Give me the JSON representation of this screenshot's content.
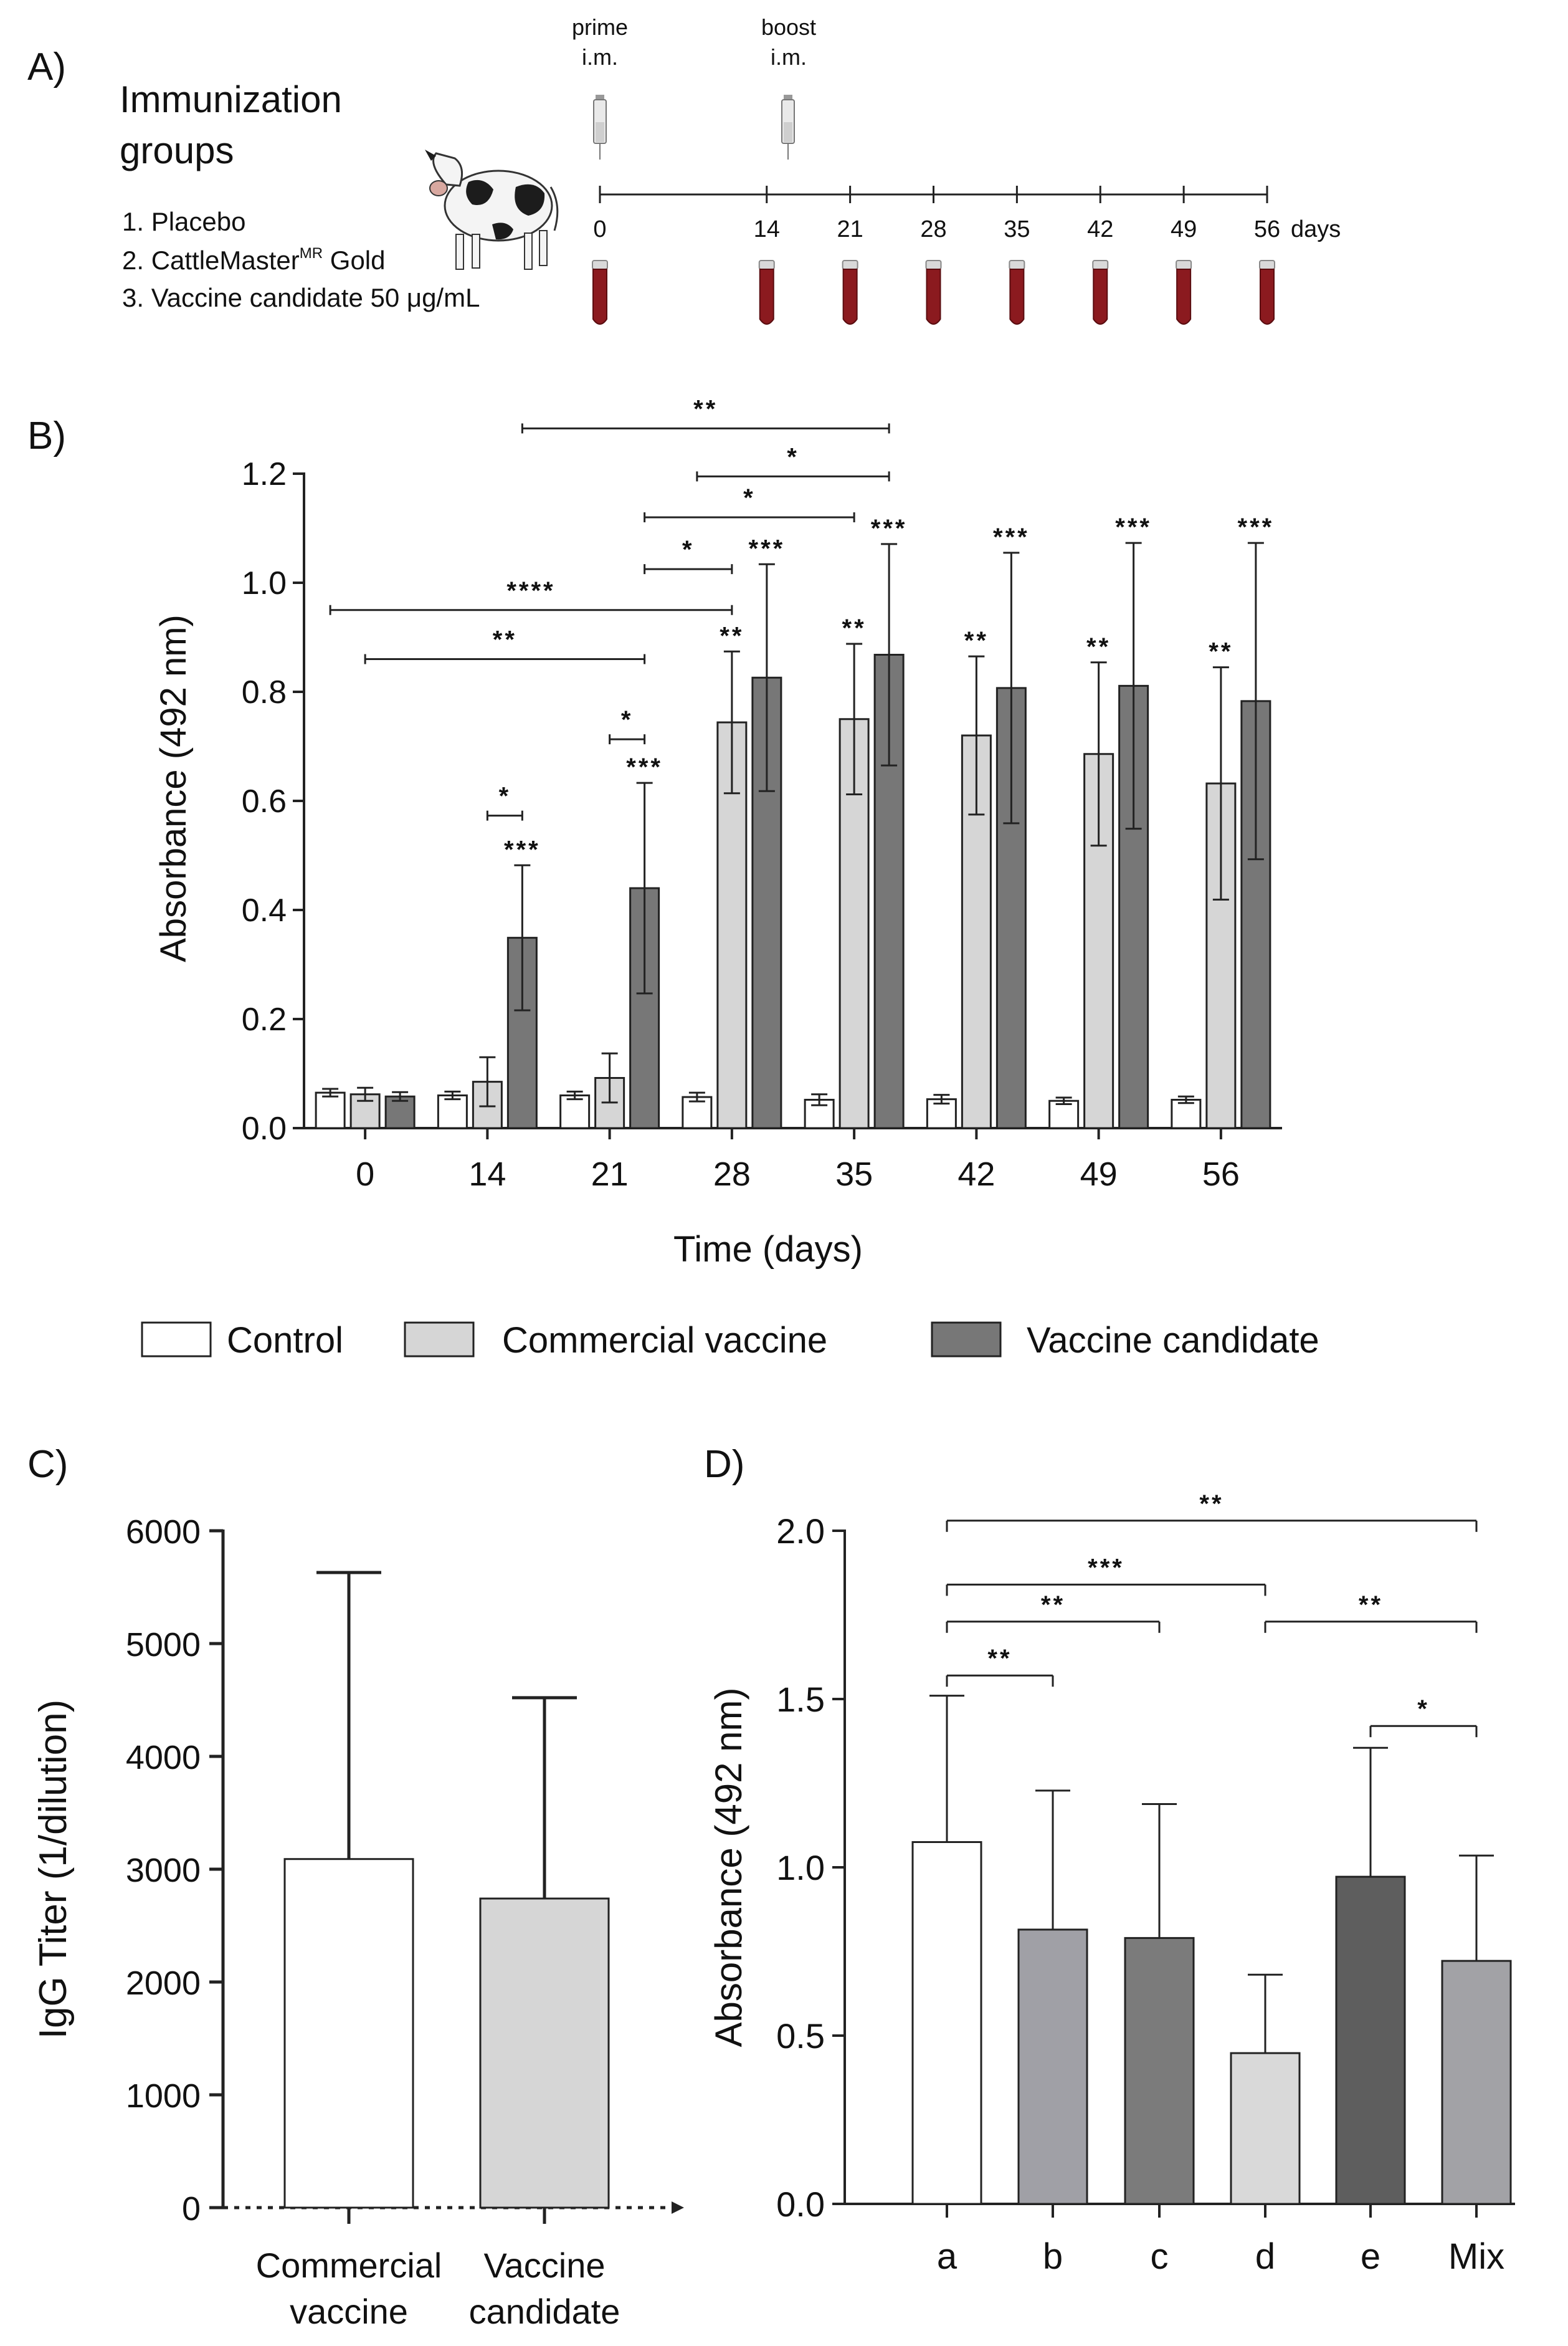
{
  "panelA": {
    "letter": "A)",
    "heading_line1": "Immunization",
    "heading_line2": "groups",
    "groups": [
      "1. Placebo",
      "2. CattleMaster",
      "3. Vaccine candidate 50 μg/mL"
    ],
    "group2_superscript": "MR",
    "group2_suffix": " Gold",
    "prime_line1": "prime",
    "prime_line2": "i.m.",
    "boost_line1": "boost",
    "boost_line2": "i.m.",
    "timeline_days": [
      "0",
      "14",
      "21",
      "28",
      "35",
      "42",
      "49",
      "56"
    ],
    "days_label": "days",
    "icons": [
      "cow-icon",
      "syringe-icon",
      "blood-tube-icon"
    ],
    "colors": {
      "blood": "#8b1a1f",
      "cap": "#d9d9d9"
    }
  },
  "panelB": {
    "letter": "B)",
    "legend": [
      "Control",
      "Commercial vaccine",
      "Vaccine candidate"
    ],
    "chart_data": {
      "type": "bar",
      "title": "",
      "xlabel": "Time (days)",
      "ylabel": "Absorbance (492 nm)",
      "ylim": [
        0,
        1.2
      ],
      "yticks": [
        "0.0",
        "0.2",
        "0.4",
        "0.6",
        "0.8",
        "1.0",
        "1.2"
      ],
      "categories": [
        "0",
        "14",
        "21",
        "28",
        "35",
        "42",
        "49",
        "56"
      ],
      "series": [
        {
          "name": "Control",
          "color": "#ffffff",
          "values": [
            0.065,
            0.06,
            0.06,
            0.057,
            0.052,
            0.053,
            0.05,
            0.052
          ],
          "errors": [
            0.007,
            0.007,
            0.007,
            0.008,
            0.01,
            0.008,
            0.006,
            0.006
          ],
          "labels": [
            "",
            "",
            "",
            "",
            "",
            "",
            "",
            ""
          ]
        },
        {
          "name": "Commercial vaccine",
          "color": "#d6d6d6",
          "values": [
            0.062,
            0.085,
            0.092,
            0.744,
            0.75,
            0.72,
            0.686,
            0.632
          ],
          "errors": [
            0.012,
            0.045,
            0.045,
            0.13,
            0.138,
            0.145,
            0.168,
            0.213
          ],
          "labels": [
            "",
            "",
            "",
            "**",
            "**",
            "**",
            "**",
            "**"
          ]
        },
        {
          "name": "Vaccine candidate",
          "color": "#777777",
          "values": [
            0.058,
            0.349,
            0.44,
            0.826,
            0.868,
            0.807,
            0.811,
            0.783
          ],
          "errors": [
            0.008,
            0.133,
            0.193,
            0.208,
            0.203,
            0.248,
            0.262,
            0.29
          ],
          "labels": [
            "",
            "***",
            "***",
            "***",
            "***",
            "***",
            "***",
            "***"
          ]
        }
      ],
      "brackets": [
        {
          "text": "*",
          "from": "14",
          "from_series": 1,
          "to": "14",
          "to_series": 2,
          "y": 0.573
        },
        {
          "text": "*",
          "from": "21",
          "from_series": 1,
          "to": "21",
          "to_series": 2,
          "y": 0.713
        },
        {
          "text": "**",
          "from": "0",
          "from_series": 1,
          "to": "21",
          "to_series": 2,
          "y": 0.86
        },
        {
          "text": "****",
          "from": "0",
          "from_series": 0,
          "to": "28",
          "to_series": 1,
          "y": 0.95
        },
        {
          "text": "*",
          "from": "21",
          "from_series": 2,
          "to": "28",
          "to_series": 1,
          "y": 1.025
        },
        {
          "text": "*",
          "from": "21",
          "from_series": 2,
          "to": "35",
          "to_series": 1,
          "y": 1.12
        },
        {
          "text": "*",
          "from": "28",
          "from_series": 0,
          "to": "35",
          "to_series": 2,
          "y": 1.195
        },
        {
          "text": "**",
          "from": "14",
          "from_series": 2,
          "to": "35",
          "to_series": 2,
          "y": 1.283
        }
      ]
    }
  },
  "panelC": {
    "letter": "C)",
    "chart_data": {
      "type": "bar",
      "title": "",
      "xlabel": "",
      "ylabel": "IgG Titer (1/dilution)",
      "ylim": [
        0,
        6000
      ],
      "yticks": [
        "0",
        "1000",
        "2000",
        "3000",
        "4000",
        "5000",
        "6000"
      ],
      "categories": [
        [
          "Commercial",
          "vaccine"
        ],
        [
          "Vaccine",
          "candidate"
        ]
      ],
      "values": [
        3090,
        2740
      ],
      "errors": [
        2540,
        1780
      ],
      "colors": [
        "#ffffff",
        "#d6d6d6"
      ]
    }
  },
  "panelD": {
    "letter": "D)",
    "chart_data": {
      "type": "bar",
      "title": "",
      "xlabel": "",
      "ylabel": "Absorbance (492 nm)",
      "ylim": [
        0,
        2.0
      ],
      "yticks": [
        "0.0",
        "0.5",
        "1.0",
        "1.5",
        "2.0"
      ],
      "categories": [
        "a",
        "b",
        "c",
        "d",
        "e",
        "Mix"
      ],
      "values": [
        1.075,
        0.815,
        0.79,
        0.448,
        0.972,
        0.722
      ],
      "errors": [
        0.435,
        0.413,
        0.398,
        0.233,
        0.383,
        0.313
      ],
      "colors": [
        "#ffffff",
        "#a0a0a6",
        "#7b7b7b",
        "#d9d9d9",
        "#5e5e5e",
        "#a2a2a6"
      ],
      "brackets": [
        {
          "text": "**",
          "from": "a",
          "to": "b",
          "y": 1.57
        },
        {
          "text": "**",
          "from": "a",
          "to": "c",
          "y": 1.73
        },
        {
          "text": "***",
          "from": "a",
          "to": "d",
          "y": 1.84
        },
        {
          "text": "**",
          "from": "a",
          "to": "Mix",
          "y": 2.03
        },
        {
          "text": "**",
          "from": "d",
          "to": "Mix",
          "y": 1.73
        },
        {
          "text": "*",
          "from": "e",
          "to": "Mix",
          "y": 1.42
        }
      ]
    }
  }
}
